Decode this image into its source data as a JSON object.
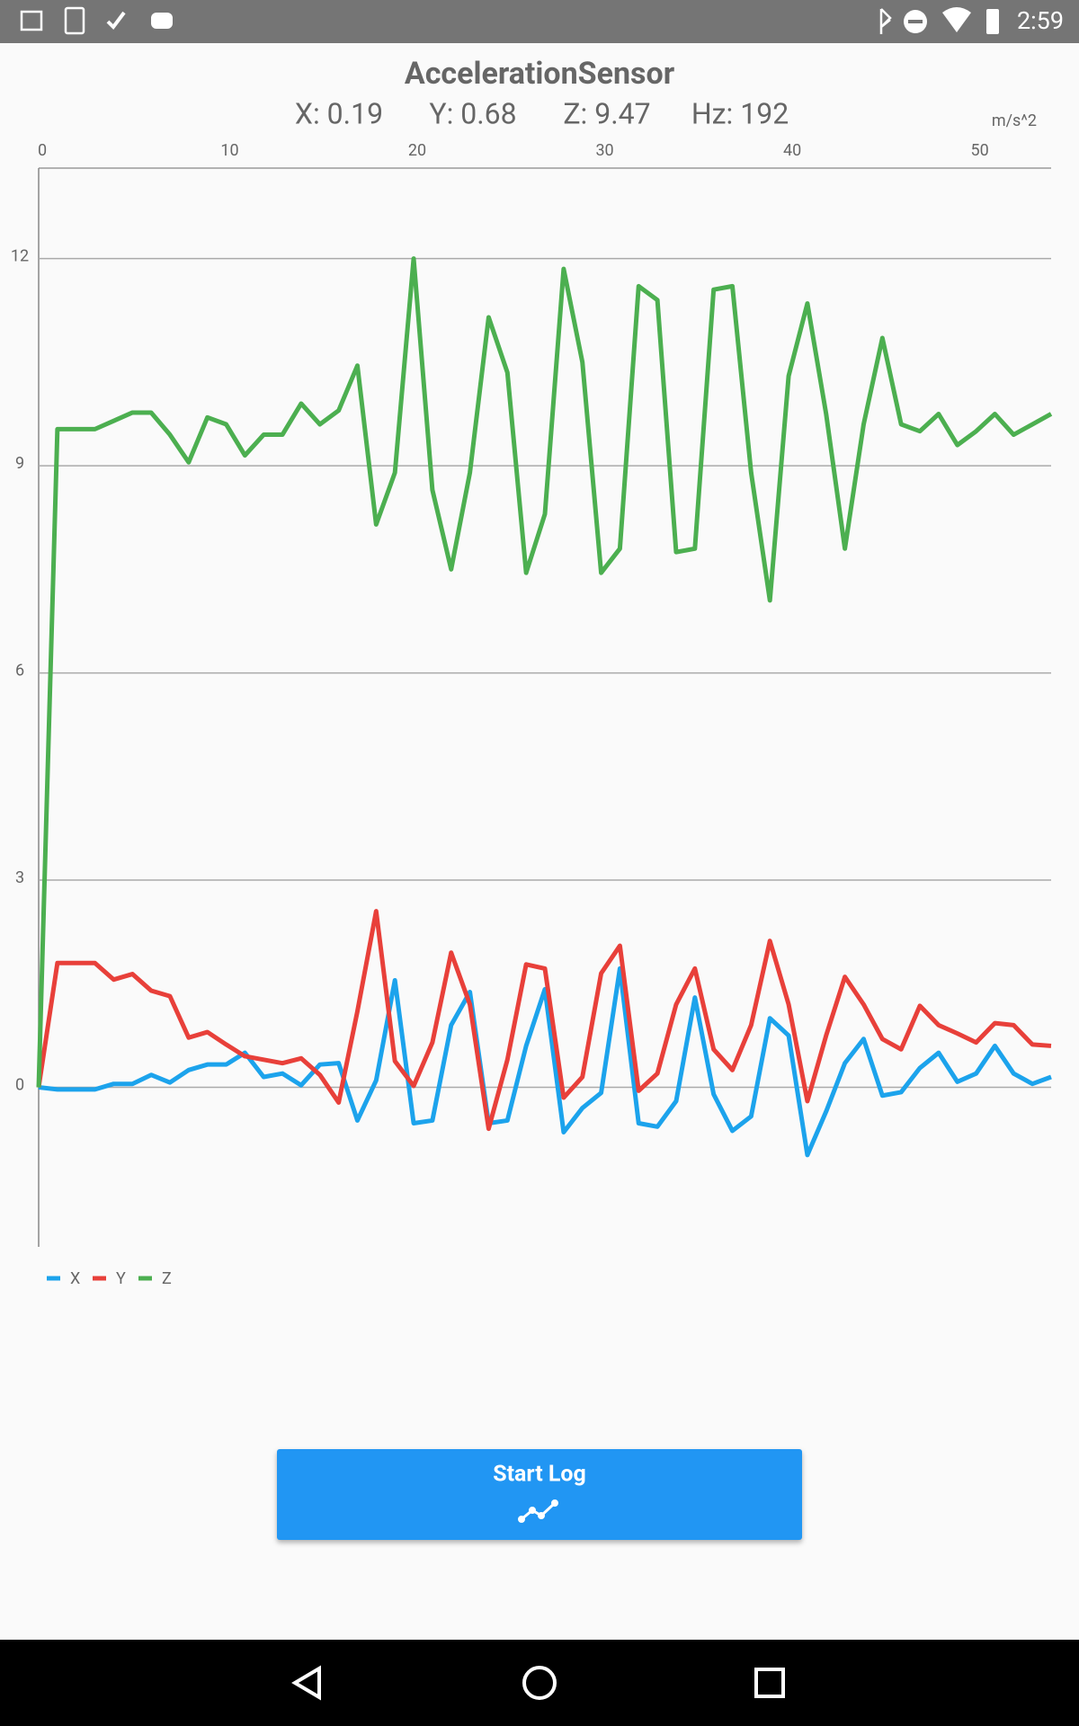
{
  "status_bar": {
    "time": "2:59"
  },
  "header": {
    "title": "AccelerationSensor",
    "readings": [
      "X: 0.19",
      "Y: 0.68",
      "Z: 9.47",
      "Hz: 192"
    ],
    "unit": "m/s^2"
  },
  "button": {
    "label": "Start Log"
  },
  "chart_data": {
    "type": "line",
    "x": [
      0,
      1,
      2,
      3,
      4,
      5,
      6,
      7,
      8,
      9,
      10,
      11,
      12,
      13,
      14,
      15,
      16,
      17,
      18,
      19,
      20,
      21,
      22,
      23,
      24,
      25,
      26,
      27,
      28,
      29,
      30,
      31,
      32,
      33,
      34,
      35,
      36,
      37,
      38,
      39,
      40,
      41,
      42,
      43,
      44,
      45,
      46,
      47,
      48,
      49,
      50,
      51,
      52,
      53,
      54
    ],
    "xlim": [
      0,
      54
    ],
    "xticks": [
      0,
      10,
      20,
      30,
      40,
      50
    ],
    "ylim": [
      -2.31,
      13.31
    ],
    "yticks": [
      0,
      3,
      6,
      9,
      12
    ],
    "grid": true,
    "series": [
      {
        "name": "X",
        "color": "#1ca3ec",
        "values": [
          0,
          -0.03,
          -0.03,
          -0.03,
          0.05,
          0.05,
          0.18,
          0.07,
          0.25,
          0.33,
          0.33,
          0.5,
          0.15,
          0.2,
          0.03,
          0.33,
          0.35,
          -0.48,
          0.1,
          1.55,
          -0.52,
          -0.48,
          0.9,
          1.38,
          -0.52,
          -0.48,
          0.6,
          1.42,
          -0.65,
          -0.3,
          -0.08,
          1.72,
          -0.52,
          -0.57,
          -0.2,
          1.3,
          -0.1,
          -0.63,
          -0.42,
          1.0,
          0.75,
          -0.98,
          -0.35,
          0.35,
          0.7,
          -0.12,
          -0.07,
          0.28,
          0.5,
          0.08,
          0.2,
          0.6,
          0.2,
          0.05,
          0.15
        ]
      },
      {
        "name": "Y",
        "color": "#e8403a",
        "values": [
          0,
          1.8,
          1.8,
          1.8,
          1.56,
          1.64,
          1.4,
          1.32,
          0.72,
          0.8,
          0.62,
          0.45,
          0.4,
          0.35,
          0.42,
          0.18,
          -0.22,
          1.1,
          2.55,
          0.38,
          0.02,
          0.65,
          1.95,
          1.2,
          -0.6,
          0.4,
          1.78,
          1.72,
          -0.15,
          0.15,
          1.65,
          2.05,
          -0.05,
          0.2,
          1.2,
          1.72,
          0.55,
          0.25,
          0.9,
          2.12,
          1.2,
          -0.2,
          0.75,
          1.6,
          1.2,
          0.7,
          0.55,
          1.18,
          0.9,
          0.78,
          0.65,
          0.93,
          0.9,
          0.62,
          0.6
        ]
      },
      {
        "name": "Z",
        "color": "#4caf50",
        "values": [
          0,
          9.53,
          9.53,
          9.53,
          9.65,
          9.77,
          9.77,
          9.45,
          9.05,
          9.7,
          9.6,
          9.15,
          9.45,
          9.45,
          9.9,
          9.6,
          9.8,
          10.45,
          8.15,
          8.9,
          12.0,
          8.65,
          7.5,
          8.9,
          11.15,
          10.35,
          7.45,
          8.3,
          11.85,
          10.5,
          7.45,
          7.8,
          11.6,
          11.4,
          7.75,
          7.8,
          11.55,
          11.6,
          8.9,
          7.05,
          10.3,
          11.35,
          9.75,
          7.8,
          9.6,
          10.85,
          9.6,
          9.5,
          9.75,
          9.3,
          9.5,
          9.75,
          9.45,
          9.6,
          9.75
        ]
      }
    ]
  }
}
